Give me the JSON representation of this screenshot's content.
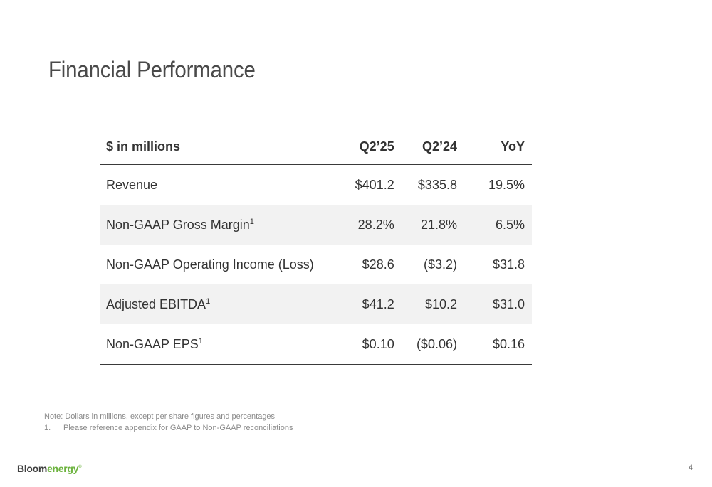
{
  "slide": {
    "title": "Financial Performance",
    "page_number": "4"
  },
  "table": {
    "headers": {
      "label": "$ in millions",
      "col1": "Q2’25",
      "col2": "Q2’24",
      "col3": "YoY"
    },
    "rows": [
      {
        "label": "Revenue",
        "sup": "",
        "q225": "$401.2",
        "q224": "$335.8",
        "yoy": "19.5%"
      },
      {
        "label": "Non-GAAP Gross Margin",
        "sup": "1",
        "q225": "28.2%",
        "q224": "21.8%",
        "yoy": "6.5%"
      },
      {
        "label": "Non-GAAP Operating Income (Loss)",
        "sup": "",
        "q225": "$28.6",
        "q224": "($3.2)",
        "yoy": "$31.8"
      },
      {
        "label": "Adjusted EBITDA",
        "sup": "1",
        "q225": "$41.2",
        "q224": "$10.2",
        "yoy": "$31.0"
      },
      {
        "label": "Non-GAAP EPS",
        "sup": "1",
        "q225": "$0.10",
        "q224": "($0.06)",
        "yoy": "$0.16"
      }
    ]
  },
  "notes": {
    "note": "Note: Dollars in millions, except per share figures and percentages",
    "footnote_marker": "1.",
    "footnote": "Please reference appendix for GAAP to Non-GAAP reconciliations"
  },
  "logo": {
    "part1": "Bloom",
    "part2": "energy",
    "mark": "®"
  },
  "colors": {
    "brand_green": "#6cb33e",
    "shade": "#f2f2f2"
  }
}
